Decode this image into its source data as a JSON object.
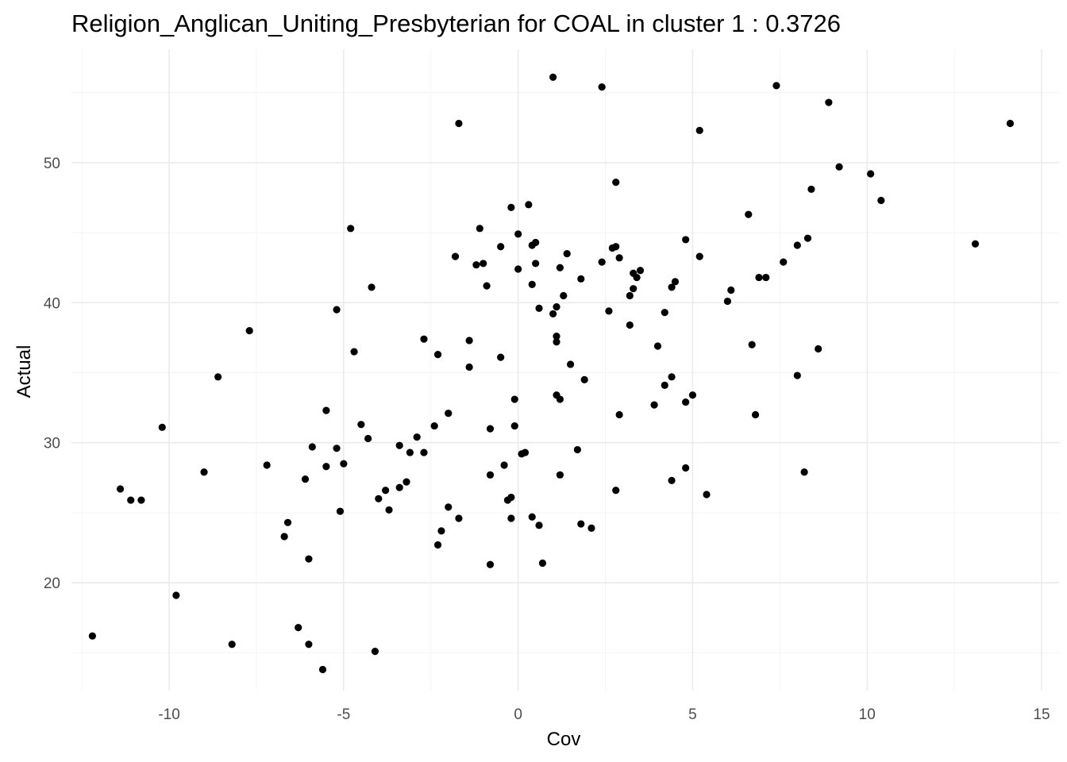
{
  "chart_data": {
    "type": "scatter",
    "title": "Religion_Anglican_Uniting_Presbyterian for COAL in cluster 1 : 0.3726",
    "xlabel": "Cov",
    "ylabel": "Actual",
    "xlim": [
      -12.8,
      15.5
    ],
    "ylim": [
      12.3,
      58.1
    ],
    "x_ticks": [
      -10,
      -5,
      0,
      5,
      10,
      15
    ],
    "y_ticks": [
      20,
      30,
      40,
      50
    ],
    "x_tick_labels": [
      "-10",
      "-5",
      "0",
      "5",
      "10",
      "15"
    ],
    "y_tick_labels": [
      "20",
      "30",
      "40",
      "50"
    ],
    "grid": true,
    "point_color": "#000000",
    "points": [
      [
        -12.2,
        16.2
      ],
      [
        -11.4,
        26.7
      ],
      [
        -11.1,
        25.9
      ],
      [
        -10.8,
        25.9
      ],
      [
        -10.2,
        31.1
      ],
      [
        -9.8,
        19.1
      ],
      [
        -9.0,
        27.9
      ],
      [
        -8.6,
        34.7
      ],
      [
        -8.2,
        15.6
      ],
      [
        -7.7,
        38.0
      ],
      [
        -7.2,
        28.4
      ],
      [
        -6.7,
        23.3
      ],
      [
        -6.6,
        24.3
      ],
      [
        -6.3,
        16.8
      ],
      [
        -6.1,
        27.4
      ],
      [
        -6.0,
        21.7
      ],
      [
        -6.0,
        15.6
      ],
      [
        -5.9,
        29.7
      ],
      [
        -5.6,
        13.8
      ],
      [
        -5.5,
        32.3
      ],
      [
        -5.5,
        28.3
      ],
      [
        -5.2,
        39.5
      ],
      [
        -5.2,
        29.6
      ],
      [
        -5.1,
        25.1
      ],
      [
        -5.0,
        28.5
      ],
      [
        -4.8,
        45.3
      ],
      [
        -4.7,
        36.5
      ],
      [
        -4.5,
        31.3
      ],
      [
        -4.3,
        30.3
      ],
      [
        -4.2,
        41.1
      ],
      [
        -4.1,
        15.1
      ],
      [
        -4.0,
        26.0
      ],
      [
        -3.8,
        26.6
      ],
      [
        -3.7,
        25.2
      ],
      [
        -3.4,
        26.8
      ],
      [
        -3.4,
        29.8
      ],
      [
        -3.2,
        27.2
      ],
      [
        -3.1,
        29.3
      ],
      [
        -2.9,
        30.4
      ],
      [
        -2.7,
        37.4
      ],
      [
        -2.7,
        29.3
      ],
      [
        -2.4,
        31.2
      ],
      [
        -2.3,
        36.3
      ],
      [
        -2.3,
        22.7
      ],
      [
        -2.2,
        23.7
      ],
      [
        -2.0,
        25.4
      ],
      [
        -2.0,
        32.1
      ],
      [
        -1.7,
        52.8
      ],
      [
        -1.8,
        43.3
      ],
      [
        -1.7,
        24.6
      ],
      [
        -1.4,
        37.3
      ],
      [
        -1.4,
        35.4
      ],
      [
        -1.2,
        42.7
      ],
      [
        -1.1,
        45.3
      ],
      [
        -1.0,
        42.8
      ],
      [
        -0.9,
        41.2
      ],
      [
        -0.8,
        31.0
      ],
      [
        -0.8,
        27.7
      ],
      [
        -0.8,
        21.3
      ],
      [
        -0.5,
        44.0
      ],
      [
        -0.5,
        36.1
      ],
      [
        -0.4,
        28.4
      ],
      [
        -0.3,
        25.9
      ],
      [
        -0.2,
        46.8
      ],
      [
        -0.2,
        26.1
      ],
      [
        -0.2,
        24.6
      ],
      [
        -0.1,
        33.1
      ],
      [
        -0.1,
        31.2
      ],
      [
        0.0,
        44.9
      ],
      [
        0.0,
        42.4
      ],
      [
        0.1,
        29.2
      ],
      [
        0.2,
        29.3
      ],
      [
        0.3,
        47.0
      ],
      [
        0.4,
        44.1
      ],
      [
        0.5,
        44.3
      ],
      [
        0.4,
        41.3
      ],
      [
        0.5,
        42.8
      ],
      [
        0.4,
        24.7
      ],
      [
        0.6,
        24.1
      ],
      [
        0.6,
        39.6
      ],
      [
        0.7,
        21.4
      ],
      [
        1.0,
        56.1
      ],
      [
        1.0,
        39.2
      ],
      [
        1.1,
        39.7
      ],
      [
        1.1,
        37.6
      ],
      [
        1.1,
        37.2
      ],
      [
        1.1,
        33.4
      ],
      [
        1.2,
        33.1
      ],
      [
        1.2,
        27.7
      ],
      [
        1.2,
        42.5
      ],
      [
        1.3,
        40.5
      ],
      [
        1.4,
        43.5
      ],
      [
        1.5,
        35.6
      ],
      [
        1.7,
        29.5
      ],
      [
        1.8,
        24.2
      ],
      [
        1.8,
        41.7
      ],
      [
        1.9,
        34.5
      ],
      [
        2.1,
        23.9
      ],
      [
        2.4,
        55.4
      ],
      [
        2.4,
        42.9
      ],
      [
        2.6,
        39.4
      ],
      [
        2.7,
        43.9
      ],
      [
        2.8,
        48.6
      ],
      [
        2.8,
        44.0
      ],
      [
        2.8,
        26.6
      ],
      [
        2.9,
        43.2
      ],
      [
        2.9,
        32.0
      ],
      [
        3.2,
        40.5
      ],
      [
        3.2,
        38.4
      ],
      [
        3.3,
        42.1
      ],
      [
        3.3,
        41.0
      ],
      [
        3.4,
        41.8
      ],
      [
        3.5,
        42.3
      ],
      [
        3.9,
        32.7
      ],
      [
        4.0,
        36.9
      ],
      [
        4.2,
        39.3
      ],
      [
        4.2,
        34.1
      ],
      [
        4.4,
        34.7
      ],
      [
        4.4,
        27.3
      ],
      [
        4.5,
        41.5
      ],
      [
        4.4,
        41.1
      ],
      [
        4.8,
        44.5
      ],
      [
        4.8,
        32.9
      ],
      [
        4.8,
        28.2
      ],
      [
        5.0,
        33.4
      ],
      [
        5.2,
        52.3
      ],
      [
        5.2,
        43.3
      ],
      [
        5.4,
        26.3
      ],
      [
        6.0,
        40.1
      ],
      [
        6.1,
        40.9
      ],
      [
        6.6,
        46.3
      ],
      [
        6.7,
        37.0
      ],
      [
        6.8,
        32.0
      ],
      [
        6.9,
        41.8
      ],
      [
        7.1,
        41.8
      ],
      [
        7.4,
        55.5
      ],
      [
        7.6,
        42.9
      ],
      [
        8.0,
        44.1
      ],
      [
        8.0,
        34.8
      ],
      [
        8.2,
        27.9
      ],
      [
        8.3,
        44.6
      ],
      [
        8.4,
        48.1
      ],
      [
        8.6,
        36.7
      ],
      [
        8.9,
        54.3
      ],
      [
        9.2,
        49.7
      ],
      [
        10.1,
        49.2
      ],
      [
        10.4,
        47.3
      ],
      [
        13.1,
        44.2
      ],
      [
        14.1,
        52.8
      ]
    ]
  }
}
